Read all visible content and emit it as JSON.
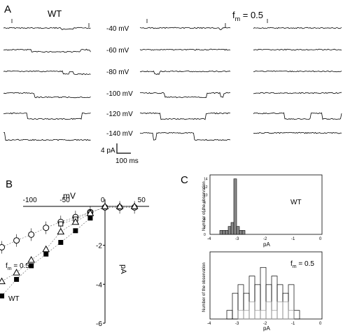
{
  "panel_a": {
    "label": "A",
    "group_wt": "WT",
    "group_fm": "f",
    "group_fm_sub": "m",
    "group_fm_value": " = 0.5",
    "voltages": [
      "-40 mV",
      "-60 mV",
      "-80 mV",
      "-100 mV",
      "-120 mV",
      "-140 mV"
    ],
    "scale_current": "4 pA",
    "scale_time": "100 ms"
  },
  "chart_data": [
    {
      "type": "scatter",
      "panel_label": "B",
      "xlabel": "mV",
      "ylabel": "pA",
      "xlim": [
        -170,
        55
      ],
      "ylim": [
        -6,
        0.5
      ],
      "x_ticks": [
        "-150",
        "-100",
        "-50",
        "0",
        "50"
      ],
      "y_ticks": [
        "-2",
        "-4",
        "-6"
      ],
      "annotations": [
        "f",
        "m",
        " = 0.5",
        "WT"
      ],
      "series": [
        {
          "marker": "open-circle",
          "x": [
            -140,
            -120,
            -100,
            -80,
            -60,
            -40,
            -20,
            0,
            20,
            40
          ],
          "y": [
            -2.1,
            -1.75,
            -1.45,
            -1.1,
            -0.8,
            -0.55,
            -0.3,
            -0.05,
            -0.05,
            -0.05
          ]
        },
        {
          "marker": "crossed-square",
          "x": [
            -60,
            -40,
            -20
          ],
          "y": [
            -0.9,
            -0.65,
            -0.3
          ]
        },
        {
          "marker": "open-triangle",
          "x": [
            -140,
            -120,
            -100,
            -80,
            -60,
            -40,
            -20,
            0,
            20,
            40
          ],
          "y": [
            -3.85,
            -3.4,
            -2.75,
            -2.2,
            -1.3,
            -0.8,
            -0.35,
            0,
            0,
            0
          ]
        },
        {
          "marker": "filled-square",
          "x": [
            -140,
            -120,
            -100,
            -80,
            -60,
            -40,
            -20
          ],
          "y": [
            -4.6,
            -3.75,
            -3.05,
            -2.45,
            -1.85,
            -1.25,
            -0.6
          ]
        }
      ]
    },
    {
      "type": "bar",
      "panel_label": "C",
      "title": "WT",
      "xlabel": "pA",
      "ylabel": "Number of the observation",
      "xlim": [
        -4,
        0
      ],
      "ylim": [
        0,
        15
      ],
      "x_ticks": [
        "-4",
        "-3",
        "-2",
        "-1",
        "0"
      ],
      "y_ticks": [
        "0",
        "2",
        "4",
        "6",
        "8",
        "10",
        "12",
        "14"
      ],
      "bin_width": 0.1,
      "x": [
        -3.6,
        -3.5,
        -3.4,
        -3.3,
        -3.2,
        -3.1,
        -3.0,
        -2.9,
        -2.8
      ],
      "values": [
        1,
        1,
        1,
        2,
        3,
        14,
        2,
        1,
        1
      ]
    },
    {
      "type": "bar",
      "panel_label": "",
      "title": "",
      "annotation": [
        "f",
        "m",
        " = 0.5"
      ],
      "xlabel": "pA",
      "ylabel": "Number of the observation",
      "xlim": [
        -4,
        0
      ],
      "ylim": [
        0,
        7
      ],
      "x_ticks": [
        "-4",
        "-3",
        "-2",
        "-1",
        "0"
      ],
      "bin_width": 0.2,
      "series": [
        {
          "x": [
            -3.3,
            -3.1,
            -2.9,
            -2.7,
            -2.5,
            -2.3,
            -2.1,
            -1.9,
            -1.7,
            -1.5,
            -1.3,
            -1.1,
            -0.9
          ],
          "values": [
            1,
            3,
            4,
            3,
            5,
            4,
            6,
            4,
            5,
            4,
            3,
            4,
            1
          ]
        },
        {
          "x": [
            -2.9,
            -2.7,
            -2.5,
            -2.3,
            -2.1,
            -1.9,
            -1.7,
            -1.5,
            -1.3,
            -1.1
          ],
          "values": [
            1,
            1,
            2,
            1,
            1,
            2,
            1,
            2,
            2,
            1
          ]
        }
      ]
    }
  ]
}
